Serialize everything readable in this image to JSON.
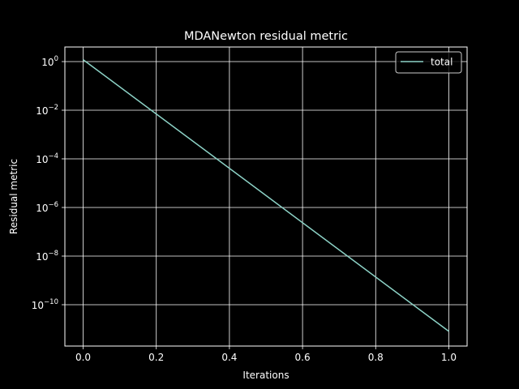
{
  "chart_data": {
    "type": "line",
    "title": "MDANewton residual metric",
    "xlabel": "Iterations",
    "ylabel": "Residual metric",
    "x_ticks": [
      "0.0",
      "0.2",
      "0.4",
      "0.6",
      "0.8",
      "1.0"
    ],
    "x_tick_values": [
      0.0,
      0.2,
      0.4,
      0.6,
      0.8,
      1.0
    ],
    "y_tick_exponents": [
      "0",
      "−2",
      "−4",
      "−6",
      "−8",
      "−10"
    ],
    "y_tick_powers": [
      0,
      -2,
      -4,
      -6,
      -8,
      -10
    ],
    "y_scale": "log",
    "xlim": [
      -0.05,
      1.05
    ],
    "ylim_log10": [
      -11.7,
      0.6
    ],
    "grid": true,
    "legend_placement": "top-right",
    "series": [
      {
        "name": "total",
        "color": "#8dd3c7",
        "x": [
          0.0,
          1.0
        ],
        "y": [
          1.2,
          8e-12
        ]
      }
    ]
  },
  "colors": {
    "background": "#000000",
    "foreground": "#ffffff",
    "line": "#8dd3c7"
  }
}
